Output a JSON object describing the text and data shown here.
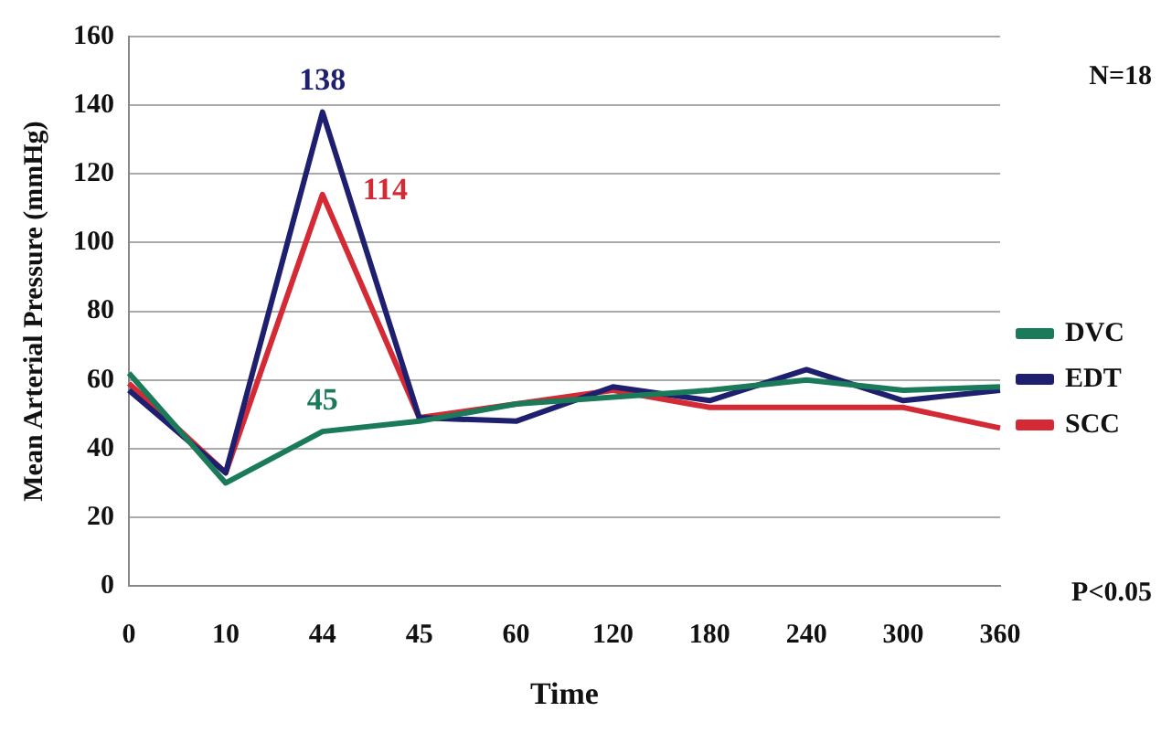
{
  "chart_data": {
    "type": "line",
    "xlabel": "Time",
    "ylabel": "Mean Arterial Pressure (mmHg)",
    "categories": [
      "0",
      "10",
      "44",
      "45",
      "60",
      "120",
      "180",
      "240",
      "300",
      "360"
    ],
    "series": [
      {
        "name": "DVC",
        "color": "#1a7a5a",
        "values": [
          62,
          30,
          45,
          48,
          53,
          55,
          57,
          60,
          57,
          58
        ],
        "value_labels": [
          null,
          null,
          "45",
          null,
          null,
          null,
          null,
          null,
          null,
          null
        ]
      },
      {
        "name": "EDT",
        "color": "#1e1f6e",
        "values": [
          57,
          33,
          138,
          49,
          48,
          58,
          54,
          63,
          54,
          57
        ],
        "value_labels": [
          null,
          null,
          "138",
          null,
          null,
          null,
          null,
          null,
          null,
          null
        ]
      },
      {
        "name": "SCC",
        "color": "#d42a35",
        "values": [
          59,
          33,
          114,
          49,
          53,
          57,
          52,
          52,
          52,
          46
        ],
        "value_labels": [
          null,
          null,
          "114",
          null,
          null,
          null,
          null,
          null,
          null,
          null
        ]
      }
    ],
    "ylim": [
      0,
      160
    ],
    "yticks": [
      0,
      20,
      40,
      60,
      80,
      100,
      120,
      140,
      160
    ],
    "grid": "y",
    "legend": "right",
    "marker": "none",
    "line_style": "solid",
    "annotations": [
      "N=18",
      "P<0.05"
    ]
  }
}
